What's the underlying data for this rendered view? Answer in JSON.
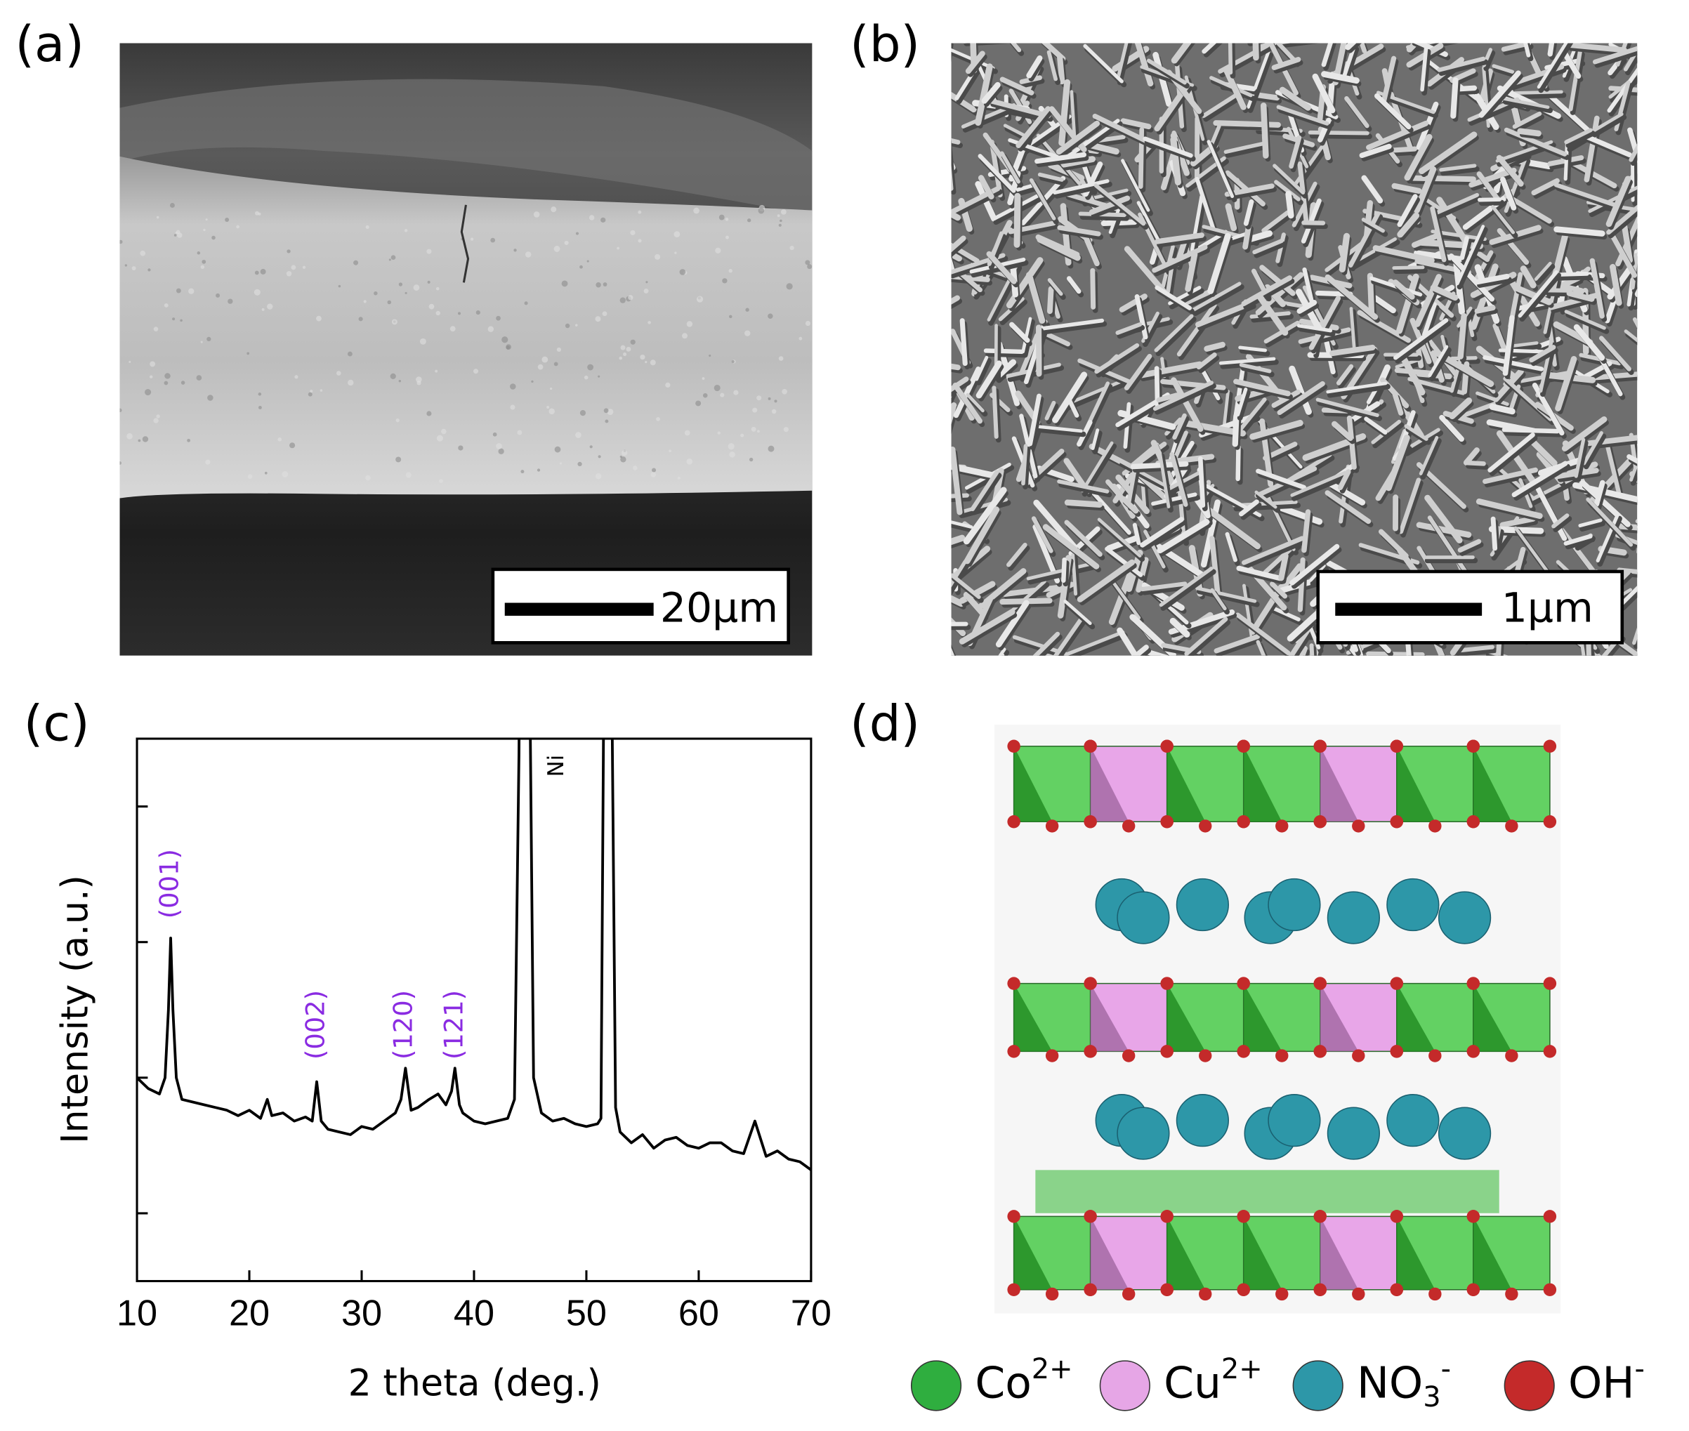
{
  "panels": {
    "a": {
      "label": "(a)",
      "scale_bar": "20μm"
    },
    "b": {
      "label": "(b)",
      "scale_bar": "1μm"
    },
    "c": {
      "label": "(c)"
    },
    "d": {
      "label": "(d)",
      "legend": [
        {
          "symbol": "Co",
          "sup": "2+",
          "color": "#2fae3f"
        },
        {
          "symbol": "Cu",
          "sup": "2+",
          "color": "#e6a6e6"
        },
        {
          "symbol": "NO",
          "sub": "3",
          "sup": "-",
          "color": "#2d97a8"
        },
        {
          "symbol": "OH",
          "sup": "-",
          "color": "#c42a2a"
        }
      ]
    }
  },
  "chart_data": {
    "type": "line",
    "xlabel": "2 theta (deg.)",
    "ylabel": "Intensity (a.u.)",
    "color": "#000000",
    "x": [
      10,
      11,
      12,
      12.5,
      12.8,
      13,
      13.2,
      13.5,
      14,
      15,
      16,
      17,
      18,
      19,
      20,
      21,
      21.6,
      22,
      23,
      24,
      25,
      25.6,
      26,
      26.4,
      27,
      28,
      29,
      30,
      31,
      32,
      33,
      33.5,
      33.9,
      34.4,
      35,
      36,
      36.8,
      37.5,
      38,
      38.3,
      38.7,
      39,
      40,
      41,
      42,
      43,
      43.6,
      44,
      44.1,
      44.9,
      45.3,
      46,
      47,
      48,
      49,
      50,
      51,
      51.3,
      51.6,
      52.2,
      52.6,
      53,
      54,
      55,
      56,
      57,
      58,
      59,
      60,
      61,
      62,
      63,
      64,
      65,
      66,
      67,
      68,
      69,
      70
    ],
    "values": [
      150,
      142,
      138,
      150,
      200,
      253,
      200,
      150,
      134,
      132,
      130,
      128,
      126,
      122,
      126,
      120,
      134,
      122,
      124,
      118,
      121,
      118,
      147,
      118,
      112,
      110,
      108,
      114,
      112,
      118,
      124,
      134,
      157,
      126,
      128,
      134,
      138,
      130,
      140,
      157,
      130,
      124,
      118,
      116,
      118,
      120,
      134,
      388,
      500,
      500,
      150,
      124,
      118,
      120,
      116,
      114,
      116,
      120,
      500,
      500,
      128,
      110,
      102,
      108,
      98,
      104,
      106,
      100,
      98,
      102,
      102,
      96,
      94,
      118,
      92,
      96,
      90,
      88,
      82
    ],
    "xlim": [
      10,
      70
    ],
    "ylim": [
      0,
      400
    ],
    "xticks": [
      10,
      20,
      30,
      40,
      50,
      60,
      70
    ],
    "yticks": [
      50,
      150,
      250,
      350
    ],
    "annotations": [
      {
        "text": "(001)",
        "x": 13,
        "y": 293,
        "color": "#8a2be2"
      },
      {
        "text": "(002)",
        "x": 26,
        "y": 189,
        "color": "#8a2be2"
      },
      {
        "text": "(120)",
        "x": 33.8,
        "y": 189,
        "color": "#8a2be2"
      },
      {
        "text": "(121)",
        "x": 38.3,
        "y": 189,
        "color": "#8a2be2"
      },
      {
        "text": "Ni",
        "x": 47.4,
        "y": 380,
        "color": "#000000"
      }
    ]
  }
}
